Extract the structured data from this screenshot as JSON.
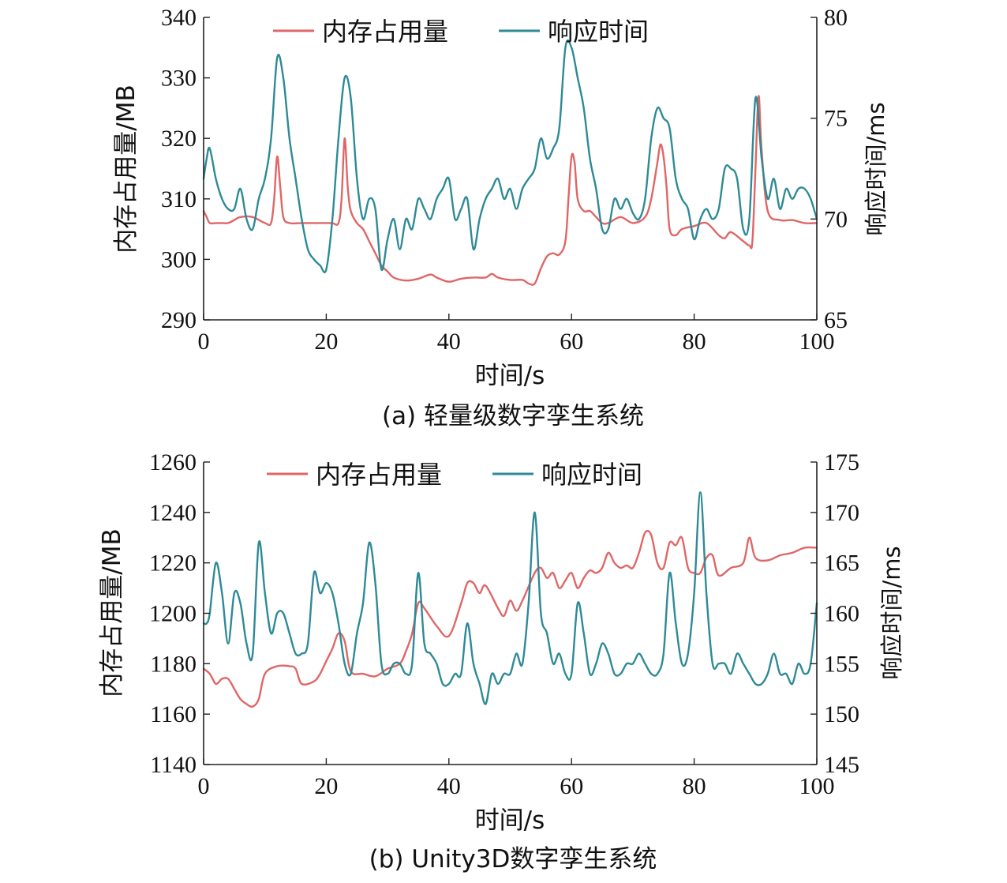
{
  "chart_data": [
    {
      "type": "line",
      "caption": "(a) 轻量级数字孪生系统",
      "xlabel": "时间/s",
      "ylabel_left": "内存占用量/MB",
      "ylabel_right": "响应时间/ms",
      "xlim": [
        0,
        100
      ],
      "ylim_left": [
        290,
        340
      ],
      "ylim_right": [
        65,
        80
      ],
      "x_ticks": [
        0,
        20,
        40,
        60,
        80,
        100
      ],
      "y_ticks_left": [
        290,
        300,
        310,
        320,
        330,
        340
      ],
      "y_ticks_right": [
        65,
        70,
        75,
        80
      ],
      "legend": "top-center",
      "grid": false,
      "series": [
        {
          "name": "内存占用量",
          "axis": "left",
          "color": "#e06666",
          "x": [
            0,
            0.5,
            1,
            2,
            3,
            4,
            5,
            6,
            8,
            10,
            11,
            11.5,
            12,
            12.5,
            13,
            14,
            16,
            18,
            20,
            21,
            22,
            22.5,
            23,
            23.5,
            24,
            25,
            26,
            27,
            28,
            29,
            30,
            31,
            33,
            35,
            37,
            38,
            40,
            42,
            44,
            46,
            47,
            48,
            50,
            52,
            53,
            54,
            55,
            56,
            57,
            58,
            59,
            59.5,
            60,
            60.5,
            61,
            62,
            63,
            64,
            65,
            66,
            68,
            70,
            72,
            73,
            74,
            74.5,
            75,
            75.5,
            76,
            77,
            78,
            80,
            82,
            84,
            85,
            86,
            88,
            89,
            89.5,
            90,
            90.5,
            91,
            92,
            94,
            96,
            98,
            100
          ],
          "values": [
            308,
            307,
            306,
            306,
            306,
            306,
            306.5,
            307,
            307,
            306,
            306,
            310,
            317,
            312,
            307,
            306,
            306,
            306,
            306,
            306,
            306,
            310,
            320,
            312,
            308,
            306,
            305,
            303,
            301,
            299,
            298,
            297,
            296.5,
            296.8,
            297.5,
            297,
            296.3,
            296.8,
            297,
            297,
            297.6,
            297,
            296.6,
            296.6,
            296,
            296,
            298.5,
            300.5,
            301,
            300.8,
            303,
            310,
            317,
            316,
            310,
            308,
            308,
            307,
            306,
            306,
            307,
            306,
            307,
            310,
            316,
            319,
            317,
            312,
            305,
            304,
            305,
            305.5,
            306,
            304,
            303.5,
            304.5,
            303,
            302.3,
            303,
            315,
            327,
            318,
            308,
            306.5,
            306.5,
            306,
            306
          ]
        },
        {
          "name": "响应时间",
          "axis": "right",
          "color": "#2e8a96",
          "x": [
            0,
            0.5,
            1,
            2,
            3,
            4,
            5,
            6,
            7,
            8,
            9,
            10,
            11,
            12,
            13,
            14,
            15,
            16,
            17,
            18,
            19,
            20,
            21,
            22,
            23,
            24,
            25,
            26,
            27,
            28,
            29,
            30,
            31,
            32,
            33,
            34,
            35,
            36,
            37,
            38,
            39,
            40,
            41,
            42,
            43,
            44,
            45,
            46,
            47,
            48,
            49,
            50,
            51,
            52,
            53,
            54,
            55,
            56,
            57,
            58,
            59,
            60,
            61,
            62,
            63,
            64,
            65,
            66,
            67,
            68,
            69,
            70,
            71,
            72,
            73,
            74,
            75,
            76,
            77,
            78,
            79,
            80,
            81,
            82,
            83,
            84,
            85,
            86,
            87,
            88,
            89,
            90,
            91,
            92,
            93,
            94,
            95,
            96,
            97,
            98,
            99,
            100
          ],
          "values": [
            72,
            73,
            73.5,
            72,
            71,
            70.5,
            70.5,
            71.5,
            70,
            69.5,
            71,
            72,
            74,
            78,
            77,
            74,
            72,
            70,
            68.5,
            68,
            67.7,
            67.5,
            70,
            74,
            77,
            76,
            72,
            70,
            71,
            70.5,
            67.5,
            69,
            70,
            68.5,
            70,
            69.5,
            71,
            70.5,
            70,
            71,
            71.5,
            72,
            70,
            70.5,
            71,
            68.5,
            70,
            71,
            71.5,
            72,
            71,
            71.5,
            70.5,
            71.5,
            72,
            72.5,
            74,
            73,
            73.5,
            74.5,
            78.5,
            78.5,
            77,
            75.5,
            73,
            71.5,
            69.5,
            69.5,
            71,
            70.5,
            71,
            70.3,
            70,
            71,
            74,
            75.5,
            75,
            74.5,
            72,
            71,
            70.5,
            69,
            70,
            70.5,
            70,
            70.5,
            72.5,
            72.5,
            72,
            69.5,
            70,
            76,
            73,
            71,
            72,
            70.5,
            71.5,
            71,
            71.5,
            71.5,
            71,
            70
          ]
        }
      ]
    },
    {
      "type": "line",
      "caption": "(b) Unity3D数字孪生系统",
      "xlabel": "时间/s",
      "ylabel_left": "内存占用量/MB",
      "ylabel_right": "响应时间/ms",
      "xlim": [
        0,
        100
      ],
      "ylim_left": [
        1140,
        1260
      ],
      "ylim_right": [
        145,
        175
      ],
      "x_ticks": [
        0,
        20,
        40,
        60,
        80,
        100
      ],
      "y_ticks_left": [
        1140,
        1160,
        1180,
        1200,
        1220,
        1240,
        1260
      ],
      "y_ticks_right": [
        145,
        150,
        155,
        160,
        165,
        170,
        175
      ],
      "legend": "top-center",
      "grid": false,
      "series": [
        {
          "name": "内存占用量",
          "axis": "left",
          "color": "#e06666",
          "x": [
            0,
            1,
            2,
            3,
            4,
            5,
            6,
            7,
            8,
            9,
            10,
            12,
            14,
            15,
            16,
            18,
            19,
            20,
            21,
            22,
            23,
            24,
            26,
            28,
            30,
            32,
            33,
            34,
            35,
            36,
            38,
            40,
            42,
            43,
            44,
            45,
            46,
            48,
            49,
            50,
            51,
            52,
            54,
            55,
            56,
            57,
            58,
            59,
            60,
            61,
            62,
            63,
            64,
            65,
            66,
            67,
            68,
            69,
            70,
            71,
            72,
            73,
            74,
            75,
            76,
            77,
            78,
            79,
            80,
            81,
            82,
            83,
            84,
            86,
            88,
            89,
            90,
            92,
            94,
            96,
            98,
            100
          ],
          "values": [
            1178,
            1176,
            1172,
            1174,
            1174,
            1170,
            1166,
            1164,
            1163,
            1166,
            1176,
            1179,
            1179,
            1178,
            1172,
            1173,
            1176,
            1181,
            1186,
            1192,
            1189,
            1177,
            1176,
            1175,
            1178,
            1180,
            1185,
            1192,
            1204,
            1202,
            1195,
            1191,
            1204,
            1212,
            1212,
            1208,
            1211,
            1202,
            1199,
            1205,
            1201,
            1205,
            1216,
            1218,
            1214,
            1216,
            1210,
            1213,
            1216,
            1210,
            1214,
            1217,
            1216,
            1218,
            1224,
            1220,
            1218,
            1219,
            1218,
            1224,
            1232,
            1231,
            1220,
            1218,
            1228,
            1227,
            1230,
            1218,
            1216,
            1216,
            1222,
            1223,
            1215,
            1218,
            1220,
            1230,
            1222,
            1221,
            1223,
            1224,
            1226,
            1226
          ]
        },
        {
          "name": "响应时间",
          "axis": "right",
          "color": "#2e8a96",
          "x": [
            0,
            0.5,
            1,
            2,
            3,
            4,
            5,
            6,
            7,
            8,
            9,
            10,
            11,
            12,
            13,
            14,
            15,
            16,
            17,
            18,
            19,
            20,
            21,
            22,
            23,
            24,
            25,
            26,
            27,
            28,
            29,
            30,
            31,
            32,
            33,
            34,
            35,
            36,
            37,
            38,
            39,
            40,
            41,
            42,
            43,
            44,
            45,
            46,
            47,
            48,
            49,
            50,
            51,
            52,
            53,
            54,
            55,
            56,
            57,
            58,
            59,
            60,
            61,
            62,
            63,
            64,
            65,
            66,
            67,
            68,
            69,
            70,
            71,
            72,
            73,
            74,
            75,
            76,
            77,
            78,
            79,
            80,
            81,
            82,
            83,
            84,
            85,
            86,
            87,
            88,
            89,
            90,
            91,
            92,
            93,
            94,
            95,
            96,
            97,
            98,
            99,
            100
          ],
          "values": [
            159,
            159,
            160,
            165,
            162,
            157,
            162,
            161,
            157,
            156,
            167,
            162,
            158,
            160,
            160,
            158,
            156,
            156,
            157,
            164,
            162,
            163,
            162,
            159,
            155,
            154,
            158,
            161,
            167,
            163,
            155,
            154,
            155,
            155,
            154,
            155,
            164,
            157,
            156,
            155,
            153,
            153,
            154,
            154,
            159,
            155,
            153,
            151,
            154,
            153,
            154,
            154,
            156,
            155,
            161,
            170,
            160,
            158,
            155,
            156,
            154,
            154,
            161,
            158,
            154,
            155,
            157,
            156,
            154,
            154,
            155,
            155,
            156,
            155,
            154,
            154,
            156,
            164,
            159,
            155,
            156,
            162,
            172,
            162,
            155,
            155,
            155,
            154,
            156,
            155,
            154,
            153,
            153,
            154,
            156,
            154,
            154,
            153,
            155,
            154,
            155,
            161
          ]
        }
      ]
    }
  ]
}
